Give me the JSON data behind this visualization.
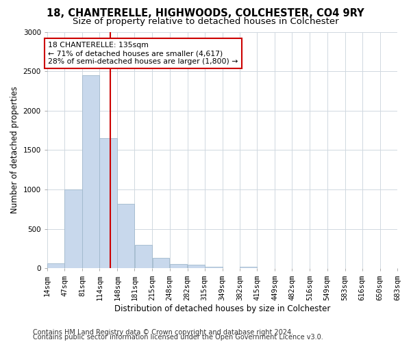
{
  "title": "18, CHANTERELLE, HIGHWOODS, COLCHESTER, CO4 9RY",
  "subtitle": "Size of property relative to detached houses in Colchester",
  "xlabel": "Distribution of detached houses by size in Colchester",
  "ylabel": "Number of detached properties",
  "bar_color": "#c8d8ec",
  "bar_edgecolor": "#a0b8cc",
  "bar_heights": [
    60,
    1000,
    2450,
    1650,
    820,
    300,
    130,
    55,
    45,
    25,
    0,
    25,
    0,
    0,
    0,
    0,
    0,
    0,
    0,
    0
  ],
  "bin_edges": [
    14,
    47,
    81,
    114,
    148,
    181,
    215,
    248,
    282,
    315,
    349,
    382,
    415,
    449,
    482,
    516,
    549,
    583,
    616,
    650,
    683
  ],
  "xlabels": [
    "14sqm",
    "47sqm",
    "81sqm",
    "114sqm",
    "148sqm",
    "181sqm",
    "215sqm",
    "248sqm",
    "282sqm",
    "315sqm",
    "349sqm",
    "382sqm",
    "415sqm",
    "449sqm",
    "482sqm",
    "516sqm",
    "549sqm",
    "583sqm",
    "616sqm",
    "650sqm",
    "683sqm"
  ],
  "ylim": [
    0,
    3000
  ],
  "yticks": [
    0,
    500,
    1000,
    1500,
    2000,
    2500,
    3000
  ],
  "vline_x": 135,
  "annotation_text": "18 CHANTERELLE: 135sqm\n← 71% of detached houses are smaller (4,617)\n28% of semi-detached houses are larger (1,800) →",
  "annotation_box_color": "#ffffff",
  "annotation_box_edgecolor": "#cc0000",
  "vline_color": "#cc0000",
  "footer_line1": "Contains HM Land Registry data © Crown copyright and database right 2024.",
  "footer_line2": "Contains public sector information licensed under the Open Government Licence v3.0.",
  "background_color": "#ffffff",
  "plot_background": "#ffffff",
  "grid_color": "#d0d8e0",
  "title_fontsize": 10.5,
  "subtitle_fontsize": 9.5,
  "axis_label_fontsize": 8.5,
  "tick_fontsize": 7.5,
  "footer_fontsize": 7
}
